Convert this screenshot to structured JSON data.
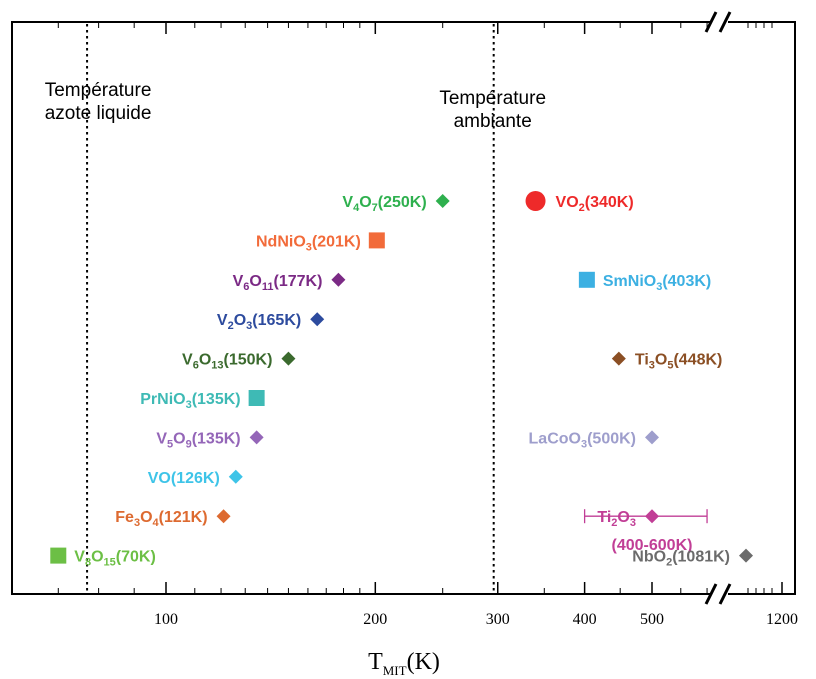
{
  "chart_data": {
    "type": "scatter",
    "title": "",
    "xlabel": "T",
    "xlabel_sub": "MIT",
    "xlabel_unit": "(K)",
    "x_scale": "log",
    "xlim": [
      57,
      1220
    ],
    "axis_break_before": 1200,
    "x_ticks": [
      {
        "value": 100,
        "label": "100"
      },
      {
        "value": 200,
        "label": "200"
      },
      {
        "value": 300,
        "label": "300"
      },
      {
        "value": 400,
        "label": "400"
      },
      {
        "value": 500,
        "label": "500"
      },
      {
        "value": 1200,
        "label": "1200"
      }
    ],
    "grid": false,
    "reference_lines": [
      {
        "x": 77,
        "lines": [
          "Température",
          "azote liquide"
        ]
      },
      {
        "x": 296,
        "lines": [
          "Température",
          "ambiante"
        ]
      }
    ],
    "points": [
      {
        "parts": [
          [
            "V",
            ""
          ],
          [
            "4",
            "sub"
          ],
          [
            "O",
            ""
          ],
          [
            "7",
            "sub"
          ],
          [
            "(250K)",
            ""
          ]
        ],
        "x": 250,
        "row": 1,
        "color": "#2eb04e",
        "marker": "diamond",
        "label_side": "left"
      },
      {
        "parts": [
          [
            "VO",
            ""
          ],
          [
            "2",
            "sub"
          ],
          [
            "(340K)",
            ""
          ]
        ],
        "x": 340,
        "row": 1,
        "color": "#ee2a2a",
        "marker": "circle",
        "label_side": "right"
      },
      {
        "parts": [
          [
            "NdNiO",
            ""
          ],
          [
            "3",
            "sub"
          ],
          [
            "(201K)",
            ""
          ]
        ],
        "x": 201,
        "row": 2,
        "color": "#f26b3a",
        "marker": "square",
        "label_side": "left"
      },
      {
        "parts": [
          [
            "V",
            ""
          ],
          [
            "6",
            "sub"
          ],
          [
            "O",
            ""
          ],
          [
            "11",
            "sub"
          ],
          [
            "(177K)",
            ""
          ]
        ],
        "x": 177,
        "row": 3,
        "color": "#7b2a85",
        "marker": "diamond",
        "label_side": "left"
      },
      {
        "parts": [
          [
            "SmNiO",
            ""
          ],
          [
            "3",
            "sub"
          ],
          [
            "(403K)",
            ""
          ]
        ],
        "x": 403,
        "row": 3,
        "color": "#3cb0e2",
        "marker": "square",
        "label_side": "right"
      },
      {
        "parts": [
          [
            "V",
            ""
          ],
          [
            "2",
            "sub"
          ],
          [
            "O",
            ""
          ],
          [
            "3",
            "sub"
          ],
          [
            "(165K)",
            ""
          ]
        ],
        "x": 165,
        "row": 4,
        "color": "#2d4b9e",
        "marker": "diamond",
        "label_side": "left"
      },
      {
        "parts": [
          [
            "V",
            ""
          ],
          [
            "6",
            "sub"
          ],
          [
            "O",
            ""
          ],
          [
            "13",
            "sub"
          ],
          [
            "(150K)",
            ""
          ]
        ],
        "x": 150,
        "row": 5,
        "color": "#3b6a2e",
        "marker": "diamond",
        "label_side": "left"
      },
      {
        "parts": [
          [
            "Ti",
            ""
          ],
          [
            "3",
            "sub"
          ],
          [
            "O",
            ""
          ],
          [
            "5",
            "sub"
          ],
          [
            "(448K)",
            ""
          ]
        ],
        "x": 448,
        "row": 5,
        "color": "#8b4f24",
        "marker": "diamond",
        "label_side": "right"
      },
      {
        "parts": [
          [
            "PrNiO",
            ""
          ],
          [
            "3",
            "sub"
          ],
          [
            "(135K)",
            ""
          ]
        ],
        "x": 135,
        "row": 6,
        "color": "#3ebab5",
        "marker": "square",
        "label_side": "left"
      },
      {
        "parts": [
          [
            "V",
            ""
          ],
          [
            "5",
            "sub"
          ],
          [
            "O",
            ""
          ],
          [
            "9",
            "sub"
          ],
          [
            "(135K)",
            ""
          ]
        ],
        "x": 135,
        "row": 7,
        "color": "#9466b8",
        "marker": "diamond",
        "label_side": "left"
      },
      {
        "parts": [
          [
            "LaCoO",
            ""
          ],
          [
            "3",
            "sub"
          ],
          [
            "(500K)",
            ""
          ]
        ],
        "x": 500,
        "row": 7,
        "color": "#9e9ecc",
        "marker": "diamond",
        "label_side": "left"
      },
      {
        "parts": [
          [
            "VO(126K)",
            ""
          ]
        ],
        "x": 126,
        "row": 8,
        "color": "#3ec4e8",
        "marker": "diamond",
        "label_side": "left"
      },
      {
        "parts": [
          [
            "Ti",
            ""
          ],
          [
            "2",
            "sub"
          ],
          [
            "O",
            ""
          ],
          [
            "3",
            "sub"
          ]
        ],
        "x": 500,
        "row": 9,
        "color": "#c13e96",
        "marker": "diamond",
        "label_side": "left",
        "error_range": [
          400,
          600
        ],
        "range_label": "(400-600K)"
      },
      {
        "parts": [
          [
            "Fe",
            ""
          ],
          [
            "3",
            "sub"
          ],
          [
            "O",
            ""
          ],
          [
            "4",
            "sub"
          ],
          [
            "(121K)",
            ""
          ]
        ],
        "x": 121,
        "row": 9,
        "color": "#dd6a30",
        "marker": "diamond",
        "label_side": "left"
      },
      {
        "parts": [
          [
            "V",
            ""
          ],
          [
            "8",
            "sub"
          ],
          [
            "O",
            ""
          ],
          [
            "15",
            "sub"
          ],
          [
            "(70K)",
            ""
          ]
        ],
        "x": 70,
        "row": 10,
        "color": "#6cbf45",
        "marker": "square",
        "label_side": "right"
      },
      {
        "parts": [
          [
            "NbO",
            ""
          ],
          [
            "2",
            "sub"
          ],
          [
            "(1081K)",
            ""
          ]
        ],
        "x": 1081,
        "row": 10,
        "color": "#6b6b6b",
        "marker": "diamond",
        "label_side": "left"
      }
    ]
  }
}
